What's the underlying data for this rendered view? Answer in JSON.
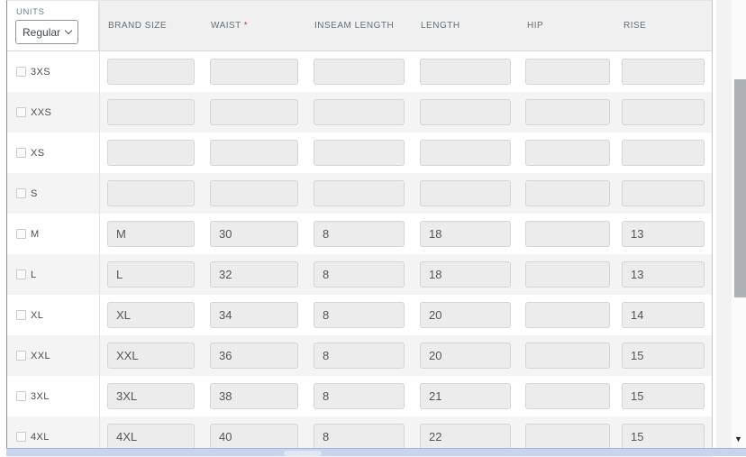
{
  "units": {
    "label": "UNITS",
    "selected": "Regular"
  },
  "header": {
    "required_marker": "*",
    "columns": [
      {
        "key": "brand",
        "label": "BRAND SIZE",
        "required": false
      },
      {
        "key": "waist",
        "label": "WAIST",
        "required": true
      },
      {
        "key": "inseam",
        "label": "INSEAM LENGTH",
        "required": false
      },
      {
        "key": "length",
        "label": "LENGTH",
        "required": false
      },
      {
        "key": "hip",
        "label": "HIP",
        "required": false
      },
      {
        "key": "rise",
        "label": "RISE",
        "required": false
      }
    ]
  },
  "rows": [
    {
      "size": "3XS",
      "checked": false,
      "values": {
        "brand": "",
        "waist": "",
        "inseam": "",
        "length": "",
        "hip": "",
        "rise": ""
      }
    },
    {
      "size": "XXS",
      "checked": false,
      "values": {
        "brand": "",
        "waist": "",
        "inseam": "",
        "length": "",
        "hip": "",
        "rise": ""
      }
    },
    {
      "size": "XS",
      "checked": false,
      "values": {
        "brand": "",
        "waist": "",
        "inseam": "",
        "length": "",
        "hip": "",
        "rise": ""
      }
    },
    {
      "size": "S",
      "checked": false,
      "values": {
        "brand": "",
        "waist": "",
        "inseam": "",
        "length": "",
        "hip": "",
        "rise": ""
      }
    },
    {
      "size": "M",
      "checked": false,
      "values": {
        "brand": "M",
        "waist": "30",
        "inseam": "8",
        "length": "18",
        "hip": "",
        "rise": "13"
      }
    },
    {
      "size": "L",
      "checked": false,
      "values": {
        "brand": "L",
        "waist": "32",
        "inseam": "8",
        "length": "18",
        "hip": "",
        "rise": "13"
      }
    },
    {
      "size": "XL",
      "checked": false,
      "values": {
        "brand": "XL",
        "waist": "34",
        "inseam": "8",
        "length": "20",
        "hip": "",
        "rise": "14"
      }
    },
    {
      "size": "XXL",
      "checked": false,
      "values": {
        "brand": "XXL",
        "waist": "36",
        "inseam": "8",
        "length": "20",
        "hip": "",
        "rise": "15"
      }
    },
    {
      "size": "3XL",
      "checked": false,
      "values": {
        "brand": "3XL",
        "waist": "38",
        "inseam": "8",
        "length": "21",
        "hip": "",
        "rise": "15"
      }
    },
    {
      "size": "4XL",
      "checked": false,
      "values": {
        "brand": "4XL",
        "waist": "40",
        "inseam": "8",
        "length": "22",
        "hip": "",
        "rise": "15"
      }
    }
  ],
  "colors": {
    "required_asterisk": "#c0453e",
    "header_bg": "#f0f0f0",
    "row_alt_bg": "#f4f4f4",
    "input_bg": "#ececec",
    "scrollbar_thumb": "#aeb1b3",
    "bottom_bar": "#c8d3ee"
  }
}
